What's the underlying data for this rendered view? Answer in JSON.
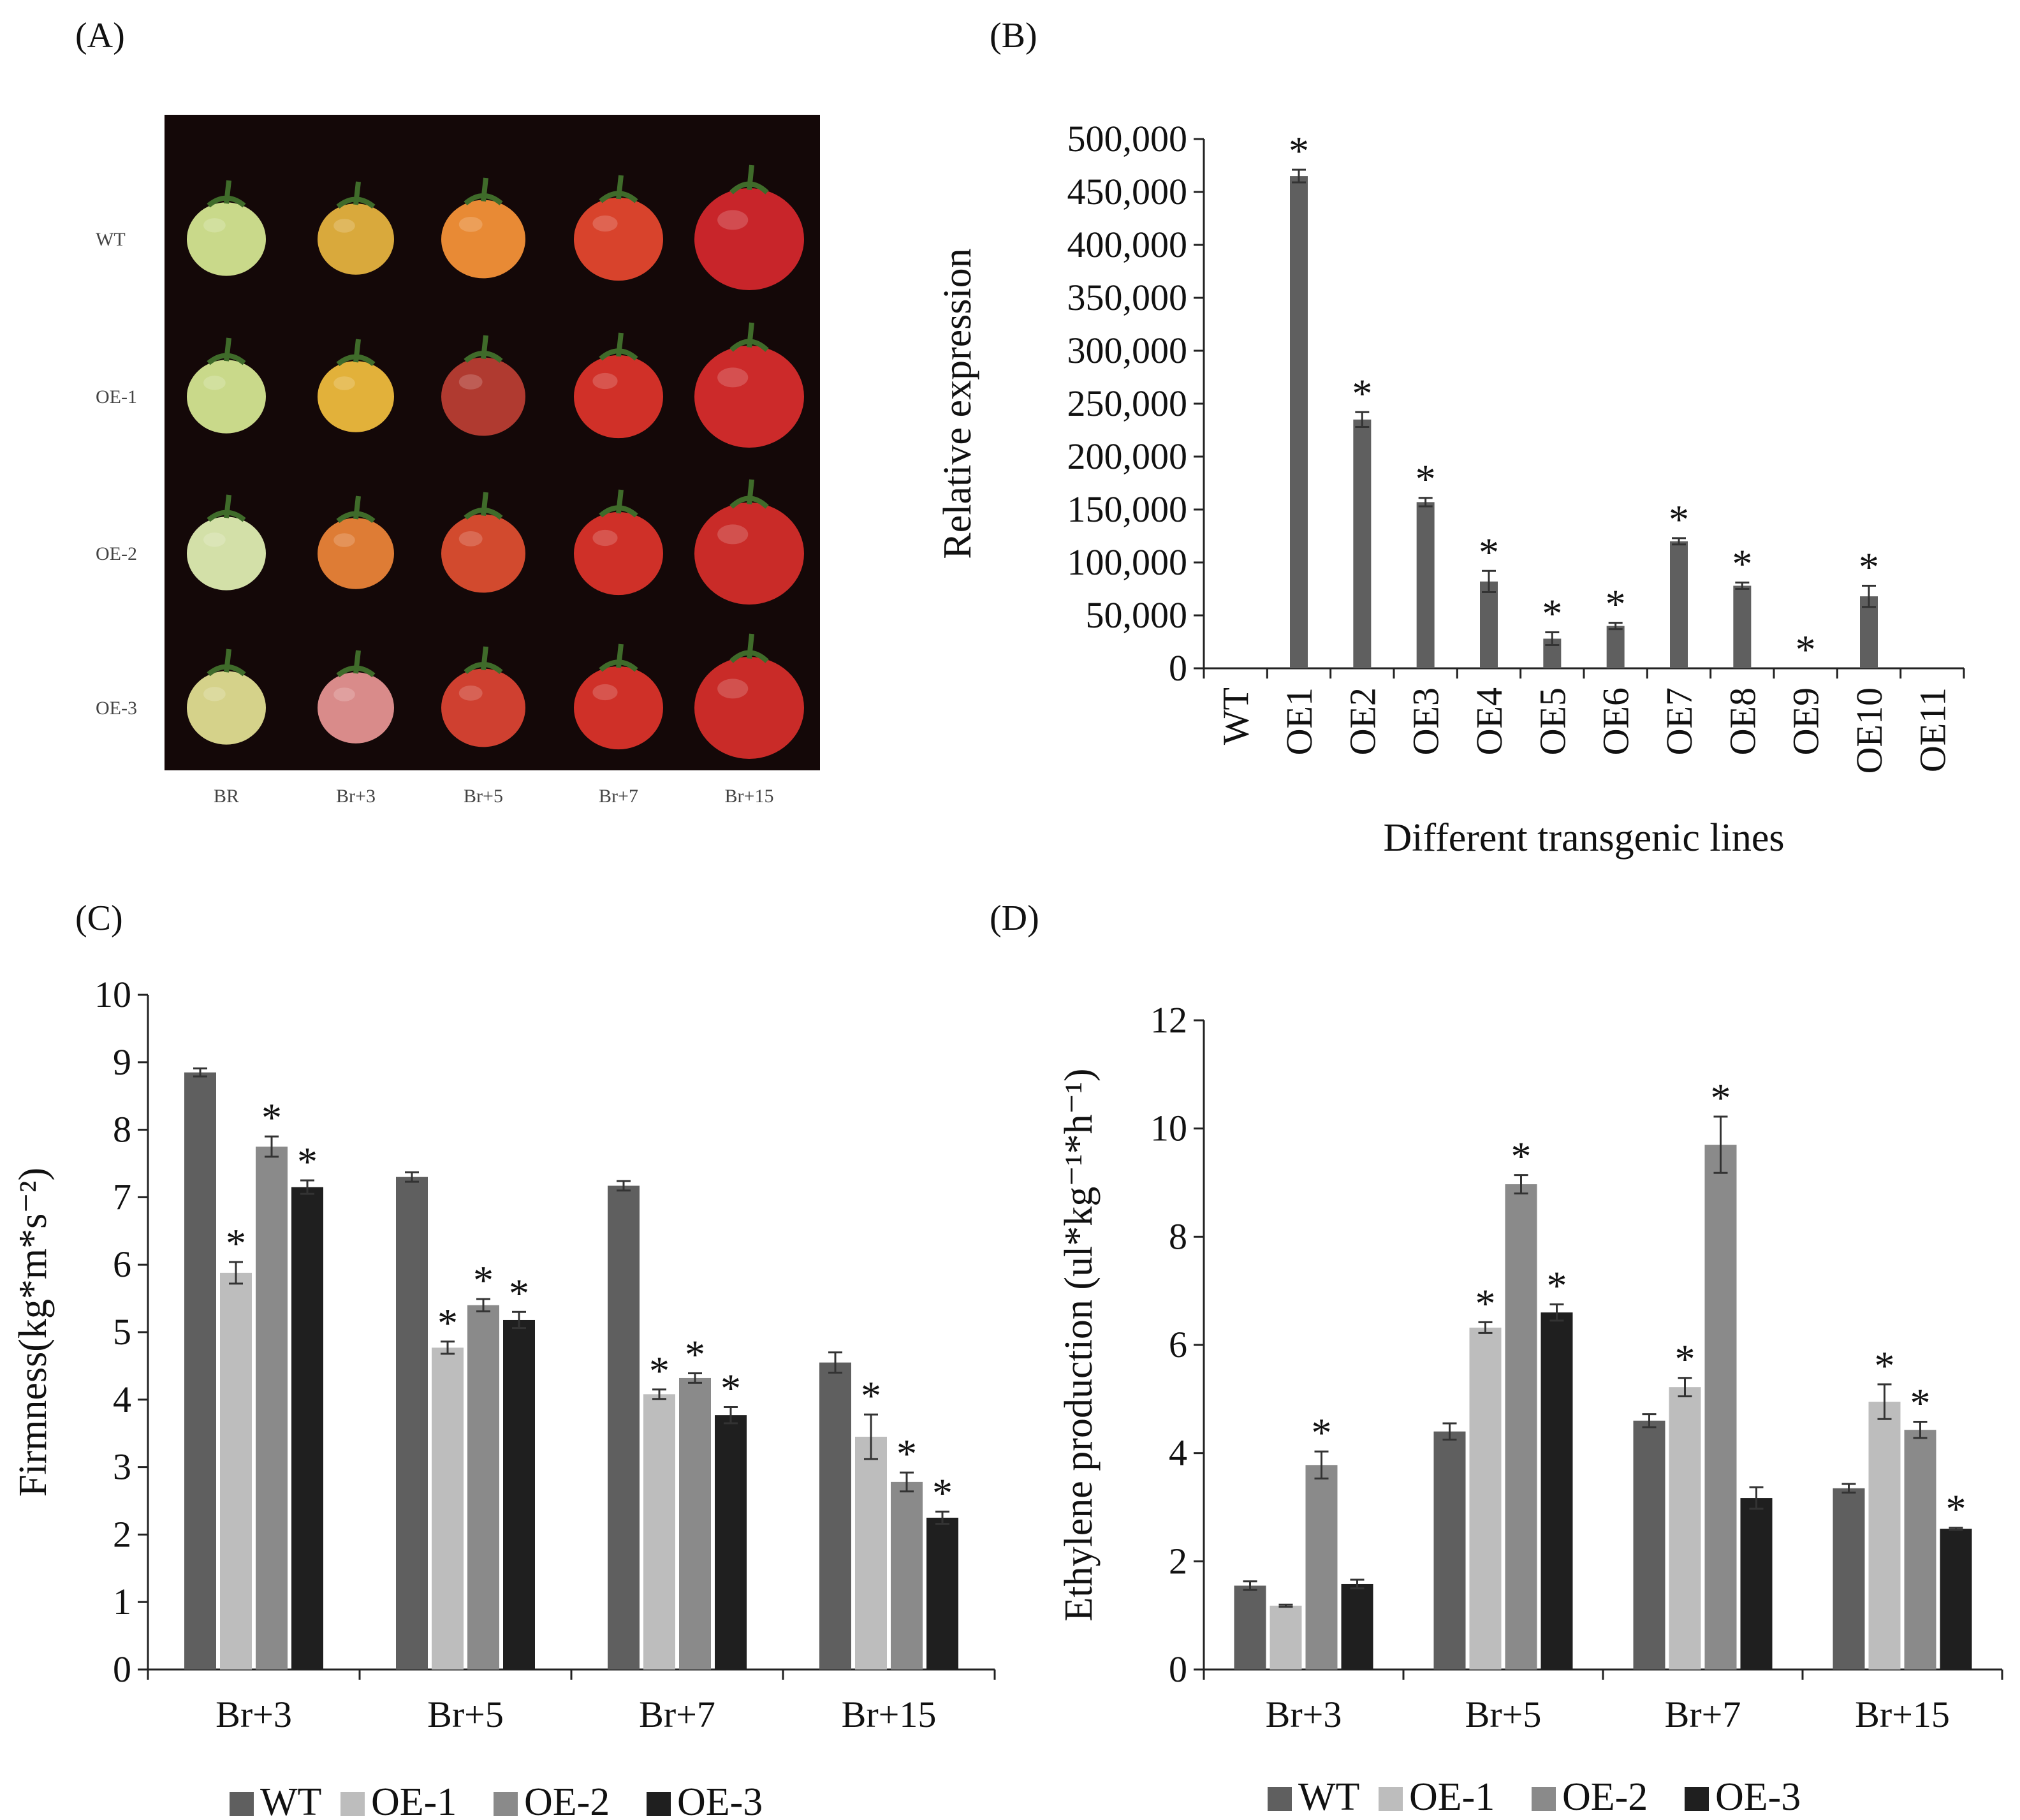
{
  "panels": {
    "a": "(A)",
    "b": "(B)",
    "c": "(C)",
    "d": "(D)"
  },
  "photo": {
    "row_labels": [
      "WT",
      "OE-1",
      "OE-2",
      "OE-3"
    ],
    "col_labels": [
      "BR",
      "Br+3",
      "Br+5",
      "Br+7",
      "Br+15"
    ],
    "fruit_colors": [
      [
        "#c9d98a",
        "#d9a93c",
        "#e88a35",
        "#d8432c",
        "#c8252a"
      ],
      [
        "#c9d98a",
        "#e2b13a",
        "#b03a30",
        "#d03028",
        "#cc2a2a"
      ],
      [
        "#d3e0a8",
        "#de7c35",
        "#d24a2e",
        "#cf3028",
        "#c92b28"
      ],
      [
        "#d5d28a",
        "#d98b8a",
        "#cf4030",
        "#cf3028",
        "#c92b28"
      ]
    ],
    "background": "#140808"
  },
  "chart_data": [
    {
      "id": "B",
      "type": "bar",
      "categories": [
        "WT",
        "OE1",
        "OE2",
        "OE3",
        "OE4",
        "OE5",
        "OE6",
        "OE7",
        "OE8",
        "OE9",
        "OE10",
        "OE11"
      ],
      "values": [
        0,
        465000,
        235000,
        157000,
        82000,
        28000,
        40000,
        120000,
        78000,
        0,
        68000,
        0
      ],
      "errors": [
        0,
        6000,
        7000,
        4000,
        10000,
        6000,
        3000,
        3000,
        3000,
        0,
        10000,
        0
      ],
      "significant": [
        false,
        true,
        true,
        true,
        true,
        true,
        true,
        true,
        true,
        true,
        true,
        false
      ],
      "ylim": [
        0,
        500000
      ],
      "yticks": [
        "0",
        "50,000",
        "100,000",
        "150,000",
        "200,000",
        "250,000",
        "300,000",
        "350,000",
        "400,000",
        "450,000",
        "500,000"
      ],
      "ylabel": "Relative expression",
      "xlabel": "Different transgenic lines",
      "colors": [
        "#5f5f5f"
      ]
    },
    {
      "id": "C",
      "type": "bar",
      "categories": [
        "Br+3",
        "Br+5",
        "Br+7",
        "Br+15"
      ],
      "series": [
        {
          "name": "WT",
          "values": [
            8.85,
            7.3,
            7.17,
            4.55
          ],
          "errors": [
            0.06,
            0.07,
            0.07,
            0.15
          ],
          "significant": [
            false,
            false,
            false,
            false
          ]
        },
        {
          "name": "OE-1",
          "values": [
            5.88,
            4.77,
            4.08,
            3.45
          ],
          "errors": [
            0.16,
            0.09,
            0.07,
            0.33
          ],
          "significant": [
            true,
            true,
            true,
            true
          ]
        },
        {
          "name": "OE-2",
          "values": [
            7.75,
            5.4,
            4.32,
            2.78
          ],
          "errors": [
            0.15,
            0.09,
            0.07,
            0.14
          ],
          "significant": [
            true,
            true,
            true,
            true
          ]
        },
        {
          "name": "OE-3",
          "values": [
            7.15,
            5.18,
            3.77,
            2.25
          ],
          "errors": [
            0.1,
            0.12,
            0.12,
            0.09
          ],
          "significant": [
            true,
            true,
            true,
            true
          ]
        }
      ],
      "ylim": [
        0,
        10
      ],
      "yticks": [
        "0",
        "1",
        "2",
        "3",
        "4",
        "5",
        "6",
        "7",
        "8",
        "9",
        "10"
      ],
      "ylabel": "Firmness(kg*m*s⁻²)",
      "colors": [
        "#5f5f5f",
        "#bdbdbd",
        "#8a8a8a",
        "#1f1f1f"
      ]
    },
    {
      "id": "D",
      "type": "bar",
      "categories": [
        "Br+3",
        "Br+5",
        "Br+7",
        "Br+15"
      ],
      "series": [
        {
          "name": "WT",
          "values": [
            1.55,
            4.4,
            4.6,
            3.35
          ],
          "errors": [
            0.08,
            0.15,
            0.12,
            0.08
          ],
          "significant": [
            false,
            false,
            false,
            false
          ]
        },
        {
          "name": "OE-1",
          "values": [
            1.18,
            6.32,
            5.22,
            4.95
          ],
          "errors": [
            0.02,
            0.1,
            0.17,
            0.32
          ],
          "significant": [
            false,
            true,
            true,
            true
          ]
        },
        {
          "name": "OE-2",
          "values": [
            3.78,
            8.97,
            9.7,
            4.43
          ],
          "errors": [
            0.25,
            0.17,
            0.52,
            0.15
          ],
          "significant": [
            true,
            true,
            true,
            true
          ]
        },
        {
          "name": "OE-3",
          "values": [
            1.58,
            6.6,
            3.17,
            2.6
          ],
          "errors": [
            0.08,
            0.15,
            0.2,
            0.02
          ],
          "significant": [
            false,
            true,
            false,
            true
          ]
        }
      ],
      "ylim": [
        0,
        12
      ],
      "yticks": [
        "0",
        "2",
        "4",
        "6",
        "8",
        "10",
        "12"
      ],
      "ylabel": "Ethylene production (ul*kg⁻¹*h⁻¹)",
      "colors": [
        "#5f5f5f",
        "#bdbdbd",
        "#8a8a8a",
        "#1f1f1f"
      ]
    }
  ],
  "significance_mark": "*"
}
